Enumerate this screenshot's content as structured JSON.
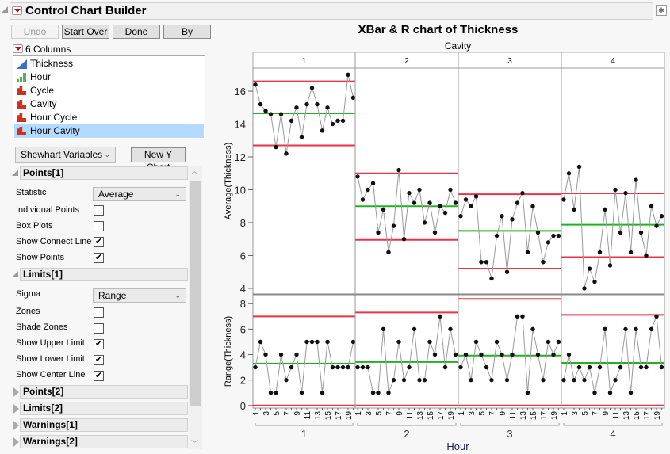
{
  "window": {
    "title": "Control Chart Builder"
  },
  "toolbar": {
    "undo": "Undo",
    "start_over": "Start Over",
    "done": "Done",
    "by": "By"
  },
  "columns": {
    "header": "6 Columns",
    "items": [
      {
        "label": "Thickness",
        "type": "continuous"
      },
      {
        "label": "Hour",
        "type": "ordinal"
      },
      {
        "label": "Cycle",
        "type": "nominal"
      },
      {
        "label": "Cavity",
        "type": "nominal"
      },
      {
        "label": "Hour Cycle",
        "type": "nominal"
      },
      {
        "label": "Hour Cavity",
        "type": "nominal",
        "selected": true
      }
    ]
  },
  "chart_type_select": "Shewhart Variables",
  "new_y_chart": "New Y Chart",
  "points1": {
    "header": "Points[1]",
    "statistic_label": "Statistic",
    "statistic_value": "Average",
    "options": [
      {
        "label": "Individual Points",
        "checked": false
      },
      {
        "label": "Box Plots",
        "checked": false
      },
      {
        "label": "Show Connect Line",
        "checked": true
      },
      {
        "label": "Show Points",
        "checked": true
      }
    ]
  },
  "limits1": {
    "header": "Limits[1]",
    "sigma_label": "Sigma",
    "sigma_value": "Range",
    "options": [
      {
        "label": "Zones",
        "checked": false
      },
      {
        "label": "Shade Zones",
        "checked": false
      },
      {
        "label": "Show Upper Limit",
        "checked": true
      },
      {
        "label": "Show Lower Limit",
        "checked": true
      },
      {
        "label": "Show Center Line",
        "checked": true
      }
    ]
  },
  "collapsed_sections": [
    "Points[2]",
    "Limits[2]",
    "Warnings[1]",
    "Warnings[2]"
  ],
  "colors": {
    "limit": "#e8334a",
    "center": "#21b024",
    "points": "#111111",
    "connect": "#999999",
    "selected": "#b3dbff"
  },
  "chart_data": {
    "type": "line",
    "title": "XBar & R chart of Thickness",
    "group_label": "Cavity",
    "xlabel": "Hour",
    "groups": [
      "1",
      "2",
      "3",
      "4"
    ],
    "x_ticks": [
      "1",
      "3",
      "5",
      "7",
      "9",
      "11",
      "13",
      "15",
      "17",
      "19"
    ],
    "hours": [
      1,
      2,
      3,
      4,
      5,
      6,
      7,
      8,
      9,
      10,
      11,
      12,
      13,
      14,
      15,
      16,
      17,
      18,
      19,
      20
    ],
    "charts": [
      {
        "ylabel": "Average(Thickness)",
        "ylim": [
          3.66,
          17.4
        ],
        "yticks": [
          4,
          6,
          8,
          10,
          12,
          14,
          16
        ],
        "series": [
          {
            "values": [
              16.4,
              15.2,
              14.8,
              14.6,
              12.6,
              14.6,
              12.2,
              14.2,
              15.0,
              13.2,
              15.2,
              16.2,
              15.2,
              13.6,
              15.0,
              14.0,
              14.2,
              14.2,
              17.0,
              15.6
            ],
            "ucl": 16.6,
            "cl": 14.65,
            "lcl": 12.7
          },
          {
            "values": [
              10.8,
              9.4,
              10.0,
              10.4,
              7.4,
              8.8,
              6.2,
              7.8,
              11.2,
              7.0,
              9.8,
              9.2,
              10.0,
              8.0,
              9.2,
              7.4,
              9.0,
              8.6,
              10.0,
              9.2
            ],
            "ucl": 11.0,
            "cl": 9.0,
            "lcl": 6.95
          },
          {
            "values": [
              8.4,
              9.4,
              9.0,
              9.6,
              5.6,
              5.6,
              4.6,
              7.2,
              8.4,
              5.0,
              8.2,
              9.2,
              9.8,
              6.2,
              9.0,
              7.4,
              5.6,
              6.8,
              7.2,
              7.2
            ],
            "ucl": 9.73,
            "cl": 7.5,
            "lcl": 5.2
          },
          {
            "values": [
              9.4,
              11.0,
              8.8,
              11.4,
              4.0,
              5.2,
              4.4,
              6.2,
              8.8,
              5.4,
              10.0,
              7.4,
              9.8,
              6.2,
              10.6,
              7.4,
              6.0,
              9.0,
              7.8,
              8.4
            ],
            "ucl": 9.78,
            "cl": 7.87,
            "lcl": 5.9
          }
        ]
      },
      {
        "ylabel": "Range(Thickness)",
        "ylim": [
          -0.2,
          8.7
        ],
        "yticks": [
          0,
          2,
          4,
          6,
          8
        ],
        "series": [
          {
            "values": [
              3,
              5,
              4,
              1,
              1,
              4,
              2,
              3,
              4,
              1,
              5,
              5,
              5,
              1,
              5,
              3,
              3,
              3,
              3,
              5
            ],
            "ucl": 7.0,
            "cl": 3.29,
            "lcl": 0
          },
          {
            "values": [
              3,
              3,
              3,
              1,
              1,
              6,
              1,
              2,
              5,
              2,
              3,
              6,
              2,
              2,
              5,
              4,
              7,
              3,
              6,
              4
            ],
            "ucl": 7.31,
            "cl": 3.42,
            "lcl": 0
          },
          {
            "values": [
              3,
              4,
              2,
              5,
              4,
              3,
              2,
              5,
              4,
              2,
              4,
              7,
              7,
              1,
              6,
              4,
              2,
              5,
              4,
              5
            ],
            "ucl": 8.37,
            "cl": 3.92,
            "lcl": 0
          },
          {
            "values": [
              2,
              4,
              2,
              3,
              2,
              3,
              1,
              3,
              6,
              1,
              2,
              3,
              6,
              1,
              6,
              3,
              3,
              6,
              7,
              3
            ],
            "ucl": 7.12,
            "cl": 3.35,
            "lcl": 0
          }
        ]
      }
    ]
  }
}
